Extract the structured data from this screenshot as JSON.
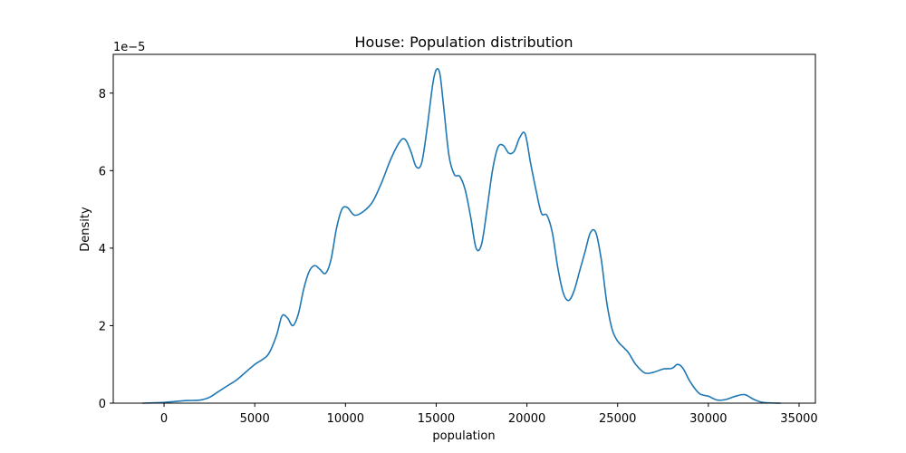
{
  "chart_data": {
    "type": "line",
    "title": "House: Population distribution",
    "xlabel": "population",
    "ylabel": "Density",
    "y_scale_label": "1e−5",
    "xlim": [
      -2800,
      35900
    ],
    "ylim": [
      0,
      9.0
    ],
    "x_ticks": [
      0,
      5000,
      10000,
      15000,
      20000,
      25000,
      30000,
      35000
    ],
    "x_tick_labels": [
      "0",
      "5000",
      "10000",
      "15000",
      "20000",
      "25000",
      "30000",
      "35000"
    ],
    "y_ticks": [
      0,
      2,
      4,
      6,
      8
    ],
    "y_tick_labels": [
      "0",
      "2",
      "4",
      "6",
      "8"
    ],
    "grid": false,
    "line_color": "#1f77b4",
    "series": [
      {
        "x": [
          -1200,
          0,
          1000,
          1500,
          2000,
          2500,
          3000,
          3500,
          4000,
          4500,
          5000,
          5500,
          5800,
          6200,
          6500,
          6800,
          7100,
          7400,
          7700,
          8000,
          8300,
          8600,
          8900,
          9200,
          9500,
          9800,
          10100,
          10500,
          11000,
          11500,
          12000,
          12500,
          13000,
          13300,
          13600,
          13900,
          14200,
          14500,
          14800,
          15000,
          15200,
          15400,
          15700,
          16000,
          16300,
          16600,
          16900,
          17200,
          17500,
          17800,
          18100,
          18400,
          18700,
          19000,
          19300,
          19600,
          19900,
          20200,
          20500,
          20800,
          21100,
          21400,
          21700,
          22000,
          22300,
          22600,
          22900,
          23200,
          23500,
          23800,
          24100,
          24400,
          24700,
          25000,
          25300,
          25600,
          26000,
          26500,
          27000,
          27500,
          28000,
          28300,
          28600,
          29000,
          29500,
          30000,
          30500,
          31000,
          31500,
          32000,
          32500,
          33000,
          34000
        ],
        "y": [
          0.0,
          0.02,
          0.06,
          0.07,
          0.08,
          0.15,
          0.3,
          0.45,
          0.6,
          0.8,
          1.0,
          1.15,
          1.3,
          1.75,
          2.25,
          2.2,
          2.0,
          2.3,
          2.95,
          3.4,
          3.55,
          3.45,
          3.35,
          3.7,
          4.5,
          5.0,
          5.05,
          4.85,
          4.95,
          5.2,
          5.7,
          6.3,
          6.75,
          6.8,
          6.5,
          6.1,
          6.2,
          7.1,
          8.2,
          8.6,
          8.5,
          7.7,
          6.4,
          5.9,
          5.85,
          5.5,
          4.8,
          4.0,
          4.1,
          5.0,
          6.0,
          6.6,
          6.65,
          6.45,
          6.5,
          6.85,
          6.95,
          6.2,
          5.5,
          4.9,
          4.85,
          4.4,
          3.5,
          2.85,
          2.65,
          2.9,
          3.4,
          3.9,
          4.4,
          4.4,
          3.7,
          2.6,
          1.9,
          1.6,
          1.45,
          1.3,
          1.0,
          0.78,
          0.8,
          0.88,
          0.9,
          1.0,
          0.9,
          0.55,
          0.25,
          0.18,
          0.08,
          0.1,
          0.18,
          0.22,
          0.1,
          0.02,
          0.0
        ]
      }
    ]
  }
}
